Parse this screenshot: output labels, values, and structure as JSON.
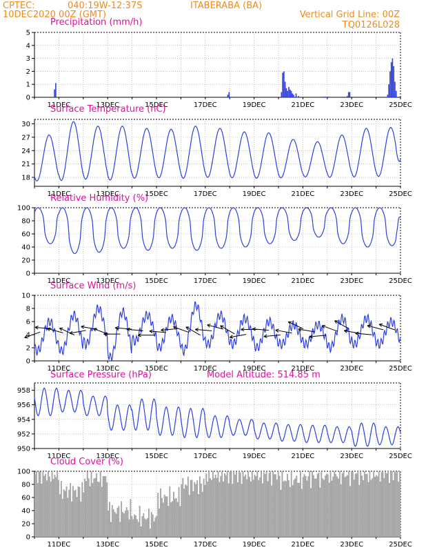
{
  "header": {
    "source": "CPTEC:",
    "location_coords": "040:19W-12:37S",
    "station": "ITABERABA (BA)",
    "run_date": "10DEC2020 00Z (GMT)",
    "grid_note": "Vertical Grid Line: 00Z",
    "model_code": "TQ0126L028"
  },
  "x_labels": [
    "11DEC",
    "13DEC",
    "15DEC",
    "17DEC",
    "19DEC",
    "21DEC",
    "23DEC",
    "25DEC"
  ],
  "colors": {
    "line": "#2b3fe0",
    "title": "#e0109a",
    "header": "#f08a1c",
    "cloud": "#a6a6a6",
    "arrow": "#000000"
  },
  "chart_data": [
    {
      "id": "precip",
      "type": "bar",
      "title": "Precipitation (mm/h)",
      "ylim": [
        0,
        5
      ],
      "yticks": [
        0,
        1,
        2,
        3,
        4,
        5
      ],
      "x_unit": "days since 10DEC2020 00Z",
      "points": [
        [
          0.8,
          0.6
        ],
        [
          0.85,
          1.1
        ],
        [
          7.9,
          0.2
        ],
        [
          7.95,
          0.4
        ],
        [
          10.1,
          0.4
        ],
        [
          10.15,
          1.9
        ],
        [
          10.2,
          2.0
        ],
        [
          10.25,
          1.2
        ],
        [
          10.3,
          0.7
        ],
        [
          10.35,
          0.5
        ],
        [
          10.4,
          0.8
        ],
        [
          10.45,
          0.6
        ],
        [
          10.5,
          0.5
        ],
        [
          10.55,
          0.3
        ],
        [
          10.6,
          0.2
        ],
        [
          10.7,
          0.3
        ],
        [
          10.8,
          0.1
        ],
        [
          11.8,
          0.05
        ],
        [
          11.9,
          0.05
        ],
        [
          12.0,
          0.05
        ],
        [
          12.8,
          0.1
        ],
        [
          12.85,
          0.4
        ],
        [
          12.9,
          0.4
        ],
        [
          14.45,
          0.2
        ],
        [
          14.5,
          1.0
        ],
        [
          14.55,
          2.0
        ],
        [
          14.6,
          2.7
        ],
        [
          14.65,
          3.0
        ],
        [
          14.7,
          2.4
        ],
        [
          14.75,
          1.2
        ],
        [
          14.8,
          0.5
        ]
      ]
    },
    {
      "id": "temp",
      "type": "line",
      "title": "Surface Temperature (nC)",
      "ylim": [
        16,
        31
      ],
      "yticks": [
        18,
        21,
        24,
        27,
        30
      ],
      "daily_max": [
        27.5,
        30.5,
        29.5,
        29.5,
        29.0,
        28.8,
        29.5,
        29.0,
        28.2,
        28.0,
        26.5,
        26.0,
        27.5,
        29.0,
        29.2
      ],
      "daily_min": [
        17.2,
        17.3,
        17.6,
        17.4,
        17.8,
        17.9,
        17.8,
        18.0,
        17.9,
        17.8,
        17.9,
        18.1,
        18.0,
        18.1,
        18.2
      ],
      "end_value": 22.0
    },
    {
      "id": "rh",
      "type": "line",
      "title": "Relative Humidity (%)",
      "ylim": [
        0,
        100
      ],
      "yticks": [
        0,
        20,
        40,
        60,
        80,
        100
      ],
      "daily_max": [
        100,
        100,
        100,
        100,
        100,
        100,
        100,
        100,
        100,
        100,
        100,
        100,
        100,
        100,
        100
      ],
      "daily_min": [
        45,
        30,
        32,
        38,
        35,
        38,
        35,
        38,
        40,
        45,
        50,
        55,
        45,
        40,
        42
      ],
      "end_value": 85
    },
    {
      "id": "wind",
      "type": "line",
      "title": "Surface Wind (m/s)",
      "ylim": [
        0,
        10
      ],
      "yticks": [
        0,
        2,
        4,
        6,
        8,
        10
      ],
      "daily_max": [
        6.0,
        7.0,
        8.0,
        7.5,
        7.0,
        6.5,
        8.5,
        7.0,
        6.5,
        6.0,
        5.5,
        5.5,
        6.5,
        6.5,
        6.0
      ],
      "daily_min": [
        1.5,
        1.5,
        2.5,
        0.5,
        3.0,
        2.0,
        1.5,
        2.5,
        2.5,
        2.0,
        2.5,
        2.5,
        2.0,
        2.5,
        2.5
      ],
      "arrow_directions_deg": [
        200,
        175,
        165,
        155,
        190,
        170,
        160,
        180,
        175,
        175,
        180,
        175,
        185,
        160,
        150,
        175,
        165,
        150,
        190,
        180,
        175,
        185,
        170,
        155,
        170,
        185,
        160,
        150,
        170,
        175,
        165,
        160
      ]
    },
    {
      "id": "pressure",
      "type": "line",
      "title": "Surface Pressure (hPa)",
      "annotation": "Model Altitude: 514.85 m",
      "ylim": [
        950,
        959
      ],
      "yticks": [
        950,
        952,
        954,
        956,
        958
      ],
      "daily_peak": [
        958.3,
        958.0,
        957.2,
        956.0,
        956.8,
        955.7,
        955.5,
        954.5,
        954.0,
        953.5,
        953.3,
        953.2,
        953.0,
        953.5,
        953.0
      ],
      "daily_trough": [
        954.5,
        955.0,
        954.5,
        952.5,
        952.5,
        951.8,
        951.5,
        951.5,
        951.8,
        951.3,
        951.0,
        950.8,
        950.8,
        950.3,
        950.5
      ]
    },
    {
      "id": "cloud",
      "type": "bar",
      "title": "Cloud Cover (%)",
      "ylim": [
        0,
        100
      ],
      "yticks": [
        0,
        20,
        40,
        60,
        80,
        100
      ],
      "day_mean": [
        95,
        70,
        90,
        40,
        30,
        60,
        80,
        95,
        95,
        95,
        88,
        92,
        95,
        95,
        98
      ]
    }
  ]
}
